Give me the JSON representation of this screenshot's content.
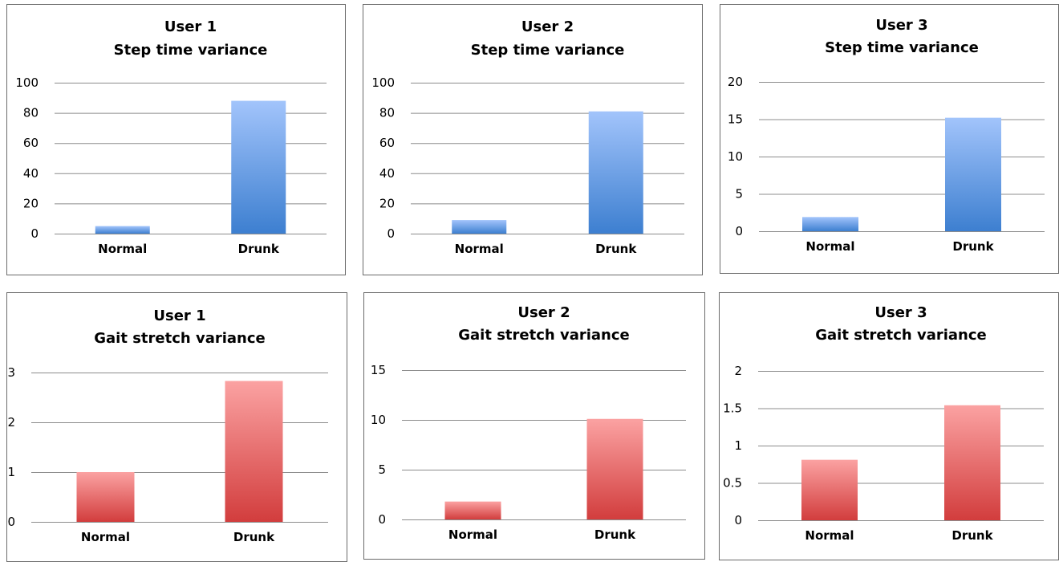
{
  "chart_data": [
    {
      "type": "bar",
      "title": "User 1",
      "subtitle": "Step time variance",
      "categories": [
        "Normal",
        "Drunk"
      ],
      "values": [
        5,
        88
      ],
      "ylim": [
        0,
        100
      ],
      "yticks": [
        0,
        20,
        40,
        60,
        80,
        100
      ],
      "color": "blue",
      "grid": true
    },
    {
      "type": "bar",
      "title": "User 2",
      "subtitle": "Step time variance",
      "categories": [
        "Normal",
        "Drunk"
      ],
      "values": [
        9,
        81
      ],
      "ylim": [
        0,
        100
      ],
      "yticks": [
        0,
        20,
        40,
        60,
        80,
        100
      ],
      "color": "blue",
      "grid": true
    },
    {
      "type": "bar",
      "title": "User 3",
      "subtitle": "Step time variance",
      "categories": [
        "Normal",
        "Drunk"
      ],
      "values": [
        1.9,
        15.2
      ],
      "ylim": [
        0,
        20
      ],
      "yticks": [
        0,
        5,
        10,
        15,
        20
      ],
      "color": "blue",
      "grid": true
    },
    {
      "type": "bar",
      "title": "User 1",
      "subtitle": "Gait stretch variance",
      "categories": [
        "Normal",
        "Drunk"
      ],
      "values": [
        1.0,
        2.83
      ],
      "ylim": [
        0,
        3
      ],
      "yticks": [
        0,
        1,
        2,
        3
      ],
      "color": "red",
      "grid": true
    },
    {
      "type": "bar",
      "title": "User 2",
      "subtitle": "Gait stretch variance",
      "categories": [
        "Normal",
        "Drunk"
      ],
      "values": [
        1.8,
        10.1
      ],
      "ylim": [
        0,
        15
      ],
      "yticks": [
        0,
        5,
        10,
        15
      ],
      "color": "red",
      "grid": true
    },
    {
      "type": "bar",
      "title": "User 3",
      "subtitle": "Gait stretch variance",
      "categories": [
        "Normal",
        "Drunk"
      ],
      "values": [
        0.81,
        1.54
      ],
      "ylim": [
        0,
        2
      ],
      "yticks": [
        0,
        0.5,
        1,
        1.5,
        2
      ],
      "color": "red",
      "grid": true
    }
  ]
}
